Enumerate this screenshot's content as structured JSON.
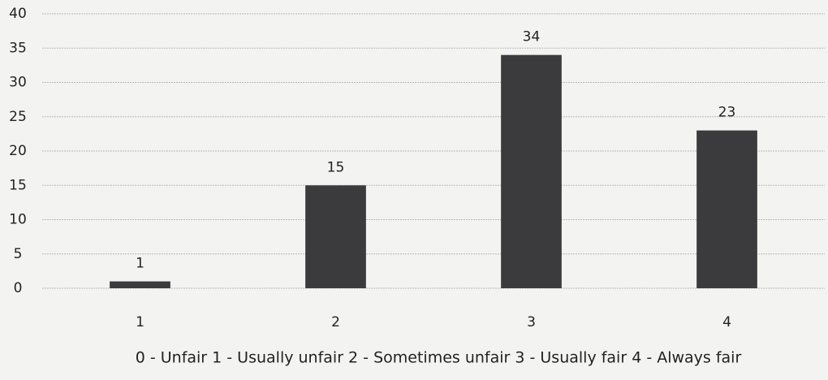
{
  "chart_data": {
    "type": "bar",
    "categories": [
      "1",
      "2",
      "3",
      "4"
    ],
    "values": [
      1,
      15,
      34,
      23
    ],
    "color": "#3b3b3d",
    "ylim": [
      0,
      40
    ],
    "yticks": [
      0,
      5,
      10,
      15,
      20,
      25,
      30,
      35,
      40
    ],
    "grid": true,
    "x_label": "0 - Unfair 1 - Usually unfair 2 - Sometimes unfair 3 - Usually fair 4 - Always fair"
  }
}
